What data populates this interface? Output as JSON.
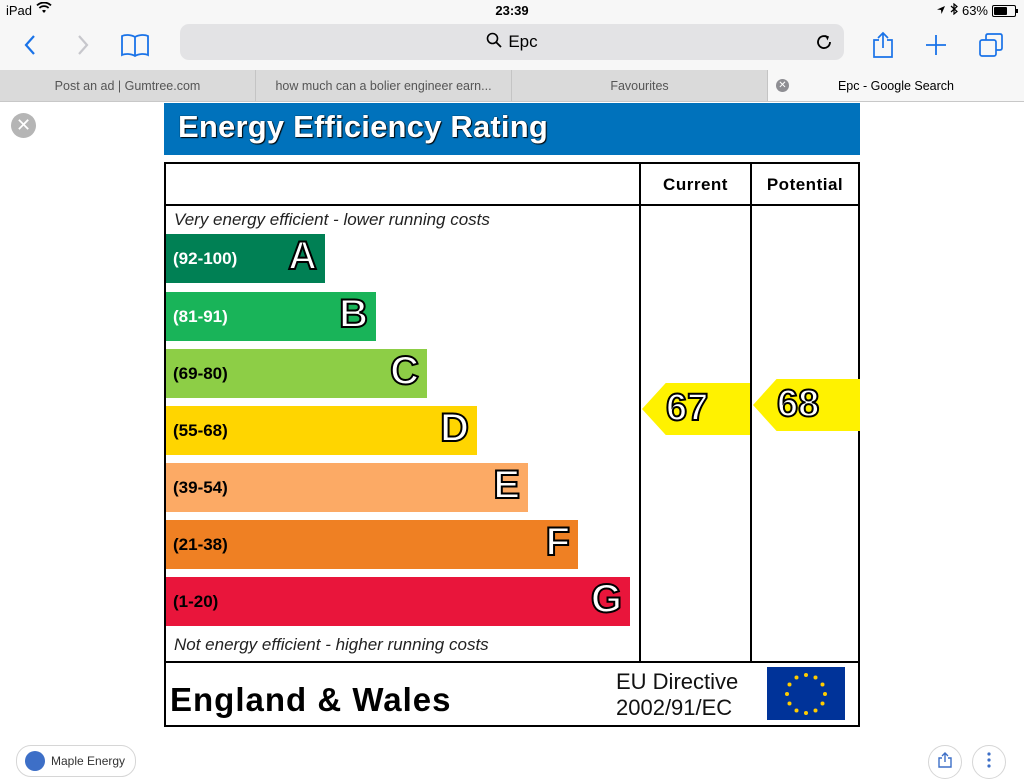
{
  "status_bar": {
    "device": "iPad",
    "time": "23:39",
    "battery": "63%",
    "battery_level": 0.63
  },
  "toolbar": {
    "address": "Epc",
    "icons": [
      "back-icon",
      "forward-icon",
      "bookmarks-icon",
      "search-icon",
      "reload-icon",
      "share-icon",
      "new-tab-icon",
      "tabs-icon"
    ]
  },
  "tabs": [
    {
      "label": "Post an ad | Gumtree.com",
      "active": false
    },
    {
      "label": "how much can a bolier engineer earn...",
      "active": false
    },
    {
      "label": "Favourites",
      "active": false
    },
    {
      "label": "Epc - Google Search",
      "active": true
    }
  ],
  "epc": {
    "title": "Energy Efficiency Rating",
    "col_current": "Current",
    "col_potential": "Potential",
    "note_top": "Very energy efficient - lower running costs",
    "note_bottom": "Not energy efficient - higher running costs",
    "bands": [
      {
        "range": "(92-100)",
        "letter": "A",
        "color": "#008054",
        "text_color": "#ffffff"
      },
      {
        "range": "(81-91)",
        "letter": "B",
        "color": "#19b459",
        "text_color": "#ffffff"
      },
      {
        "range": "(69-80)",
        "letter": "C",
        "color": "#8dce46",
        "text_color": "#000000"
      },
      {
        "range": "(55-68)",
        "letter": "D",
        "color": "#ffd500",
        "text_color": "#000000"
      },
      {
        "range": "(39-54)",
        "letter": "E",
        "color": "#fcaa65",
        "text_color": "#000000"
      },
      {
        "range": "(21-38)",
        "letter": "F",
        "color": "#ef8023",
        "text_color": "#000000"
      },
      {
        "range": "(1-20)",
        "letter": "G",
        "color": "#e9153b",
        "text_color": "#000000"
      }
    ],
    "current": "67",
    "potential": "68",
    "region": "England & Wales",
    "directive_line1": "EU Directive",
    "directive_line2": "2002/91/EC"
  },
  "bottom_bar": {
    "source": "Maple Energy"
  }
}
